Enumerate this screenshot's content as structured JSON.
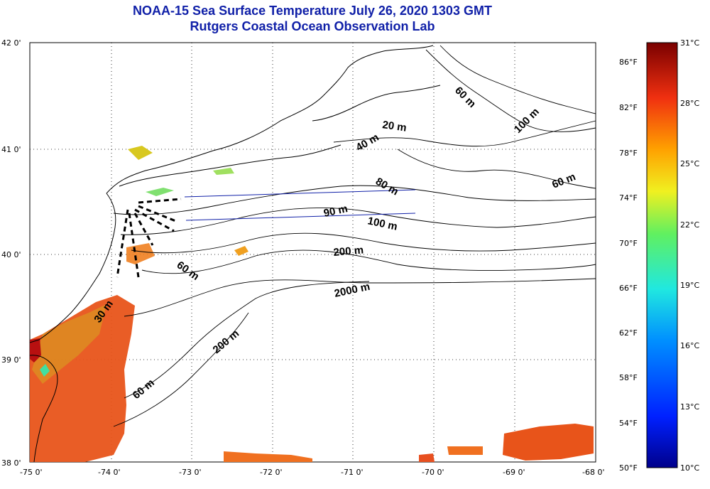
{
  "header": {
    "title": "NOAA-15 Sea Surface Temperature July 26, 2020 1303 GMT",
    "subtitle": "Rutgers Coastal Ocean Observation Lab"
  },
  "map": {
    "lon_labels": [
      "-75 0'",
      "-74 0'",
      "-73 0'",
      "-72 0'",
      "-71 0'",
      "-70 0'",
      "-69 0'",
      "-68 0'"
    ],
    "lat_labels": [
      "42 0'",
      "41 0'",
      "40 0'",
      "39 0'",
      "38 0'"
    ],
    "isobaths": [
      "20 m",
      "40 m",
      "100 m",
      "60 m",
      "80 m",
      "90 m",
      "100 m",
      "200 m",
      "60 m",
      "2000 m",
      "30 m",
      "200 m",
      "60 m"
    ]
  },
  "colorbar": {
    "celsius": [
      "31°C",
      "28°C",
      "25°C",
      "22°C",
      "19°C",
      "16°C",
      "13°C",
      "10°C"
    ],
    "fahrenheit": [
      "86°F",
      "82°F",
      "78°F",
      "74°F",
      "70°F",
      "66°F",
      "62°F",
      "58°F",
      "54°F",
      "50°F"
    ]
  },
  "colors": {
    "title": "#1020a8",
    "warm": "#e8541a",
    "hot": "#b81010",
    "cool": "#40e0a0"
  }
}
